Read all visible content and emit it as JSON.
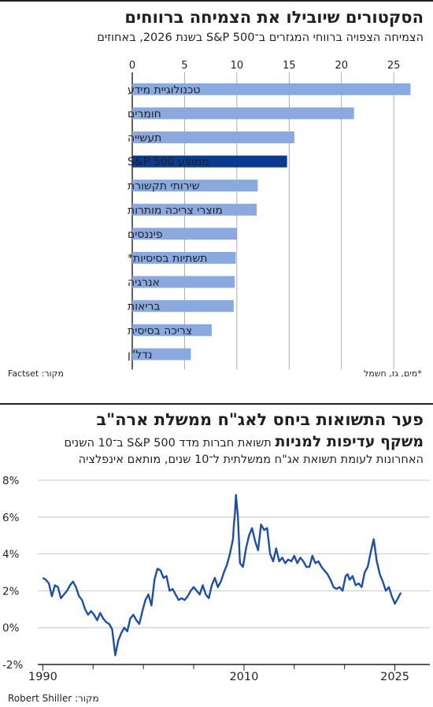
{
  "chart_data": [
    {
      "type": "bar",
      "orientation": "horizontal",
      "title": "הסקטורים שיובילו את הצמיחה ברווחים",
      "subtitle": "הצמיחה הצפויה ברווחי המגזרים ב־S&P 500 בשנת 2026, באחוזים",
      "categories": [
        "טכנולוגיית מידע",
        "חומרים",
        "תעשייה",
        "ממוצע S&P 500",
        "שירותי תקשורת",
        "מוצרי צריכה מותרות",
        "פיננסים",
        "תשתיות בסיסיות*",
        "אנרגיה",
        "בריאות",
        "צריכה בסיסית",
        "נדל\"ן"
      ],
      "values": [
        26.6,
        21.2,
        15.5,
        14.8,
        12.0,
        11.9,
        10.0,
        9.9,
        9.8,
        9.7,
        7.6,
        5.6
      ],
      "highlight_index": 3,
      "xlim": [
        0,
        28
      ],
      "xticks": [
        0,
        5,
        10,
        15,
        20,
        25
      ],
      "colors": {
        "bar": "#8aa9de",
        "highlight": "#0b3b8f"
      },
      "footnote": "*מים, גז, חשמל",
      "source": "מקור: Factset"
    },
    {
      "type": "line",
      "title_line1": "פער התשואות ביחס לאג\"ח ממשלת ארה\"ב",
      "title_line2_bold": "משקף עדיפות למניות",
      "title_line2_rest": " תשואת חברות מדד S&P 500 ב־10 השנים",
      "subtitle_line2": "האחרונות לעומת תשואת אג\"ח ממשלתית ל־10 שנים, מותאם אינפלציה",
      "x": [
        1990.0,
        1990.3,
        1990.6,
        1990.9,
        1991.2,
        1991.5,
        1991.8,
        1992.1,
        1992.4,
        1992.7,
        1993.0,
        1993.3,
        1993.6,
        1993.9,
        1994.2,
        1994.5,
        1994.8,
        1995.1,
        1995.4,
        1995.7,
        1996.0,
        1996.3,
        1996.6,
        1996.9,
        1997.2,
        1997.5,
        1997.8,
        1998.1,
        1998.4,
        1998.7,
        1999.0,
        1999.3,
        1999.6,
        1999.9,
        2000.2,
        2000.5,
        2000.8,
        2001.1,
        2001.4,
        2001.7,
        2002.0,
        2002.3,
        2002.6,
        2002.9,
        2003.2,
        2003.5,
        2003.8,
        2004.1,
        2004.4,
        2004.7,
        2005.0,
        2005.3,
        2005.6,
        2005.9,
        2006.2,
        2006.5,
        2006.8,
        2007.1,
        2007.4,
        2007.7,
        2008.0,
        2008.3,
        2008.6,
        2008.9,
        2009.0,
        2009.1,
        2009.2,
        2009.4,
        2009.6,
        2009.9,
        2010.2,
        2010.5,
        2010.8,
        2011.1,
        2011.4,
        2011.7,
        2012.0,
        2012.3,
        2012.6,
        2012.9,
        2013.2,
        2013.5,
        2013.8,
        2014.1,
        2014.4,
        2014.7,
        2015.0,
        2015.3,
        2015.6,
        2015.9,
        2016.2,
        2016.5,
        2016.8,
        2017.1,
        2017.4,
        2017.7,
        2018.0,
        2018.3,
        2018.6,
        2018.9,
        2019.2,
        2019.5,
        2019.8,
        2020.1,
        2020.3,
        2020.5,
        2020.8,
        2021.1,
        2021.4,
        2021.7,
        2022.0,
        2022.3,
        2022.6,
        2022.9,
        2023.2,
        2023.5,
        2023.8,
        2024.1,
        2024.4,
        2024.7,
        2025.0,
        2025.3,
        2025.6
      ],
      "y": [
        2.7,
        2.6,
        2.4,
        1.7,
        2.3,
        2.2,
        1.6,
        1.8,
        2.0,
        2.3,
        2.5,
        2.2,
        1.7,
        1.5,
        1.0,
        0.7,
        0.9,
        0.7,
        0.4,
        0.8,
        0.5,
        0.3,
        0.2,
        -0.1,
        -1.5,
        -0.7,
        -0.3,
        0.0,
        -0.2,
        0.5,
        0.7,
        0.4,
        0.2,
        0.9,
        1.5,
        1.8,
        1.2,
        2.6,
        3.2,
        3.1,
        2.7,
        2.8,
        2.0,
        2.1,
        1.8,
        1.5,
        1.6,
        1.5,
        1.7,
        2.0,
        2.2,
        2.0,
        1.8,
        2.3,
        1.8,
        1.6,
        2.3,
        2.7,
        2.2,
        2.5,
        3.0,
        3.4,
        4.0,
        4.8,
        5.6,
        6.2,
        7.2,
        6.0,
        3.5,
        3.3,
        4.3,
        5.0,
        5.4,
        4.7,
        4.2,
        5.6,
        5.3,
        5.4,
        4.0,
        3.6,
        4.3,
        3.6,
        3.8,
        3.5,
        3.7,
        3.6,
        3.9,
        3.5,
        3.8,
        3.6,
        3.3,
        3.3,
        3.9,
        3.5,
        3.6,
        3.3,
        3.1,
        2.9,
        2.6,
        2.2,
        2.1,
        2.2,
        2.0,
        2.8,
        2.9,
        2.6,
        2.8,
        2.3,
        2.4,
        2.2,
        3.0,
        3.3,
        4.1,
        4.8,
        3.6,
        2.9,
        2.5,
        2.0,
        2.2,
        1.7,
        1.3,
        1.6,
        1.9
      ],
      "ylim": [
        -2,
        8
      ],
      "yticks": [
        -2,
        0,
        2,
        4,
        6,
        8
      ],
      "ytick_labels": [
        "-2%",
        "0%",
        "2%",
        "4%",
        "6%",
        "8%"
      ],
      "xlim": [
        1989.5,
        2026.6
      ],
      "xtick_labels": [
        "1990",
        "2010",
        "2025"
      ],
      "colors": {
        "line": "#1e4fa3"
      },
      "source": "מקור: Robert Shiller"
    }
  ]
}
